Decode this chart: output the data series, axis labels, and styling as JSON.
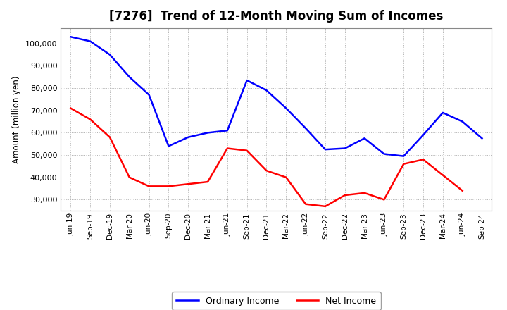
{
  "title": "[7276]  Trend of 12-Month Moving Sum of Incomes",
  "ylabel": "Amount (million yen)",
  "x_labels": [
    "Jun-19",
    "Sep-19",
    "Dec-19",
    "Mar-20",
    "Jun-20",
    "Sep-20",
    "Dec-20",
    "Mar-21",
    "Jun-21",
    "Sep-21",
    "Dec-21",
    "Mar-22",
    "Jun-22",
    "Sep-22",
    "Dec-22",
    "Mar-23",
    "Jun-23",
    "Sep-23",
    "Dec-23",
    "Mar-24",
    "Jun-24",
    "Sep-24"
  ],
  "ordinary_income": [
    103000,
    101000,
    95000,
    85000,
    77000,
    54000,
    58000,
    60000,
    61000,
    83500,
    79000,
    71000,
    62000,
    52500,
    53000,
    57500,
    50500,
    49500,
    59000,
    69000,
    65000,
    57500
  ],
  "net_income": [
    71000,
    66000,
    58000,
    40000,
    36000,
    36000,
    37000,
    38000,
    53000,
    52000,
    43000,
    40000,
    28000,
    27000,
    32000,
    33000,
    30000,
    46000,
    48000,
    41000,
    34000,
    null
  ],
  "ordinary_color": "#0000FF",
  "net_color": "#FF0000",
  "background_color": "#FFFFFF",
  "plot_bg_color": "#FFFFFF",
  "grid_color": "#AAAAAA",
  "ylim": [
    25000,
    107000
  ],
  "yticks": [
    30000,
    40000,
    50000,
    60000,
    70000,
    80000,
    90000,
    100000
  ],
  "legend_labels": [
    "Ordinary Income",
    "Net Income"
  ]
}
